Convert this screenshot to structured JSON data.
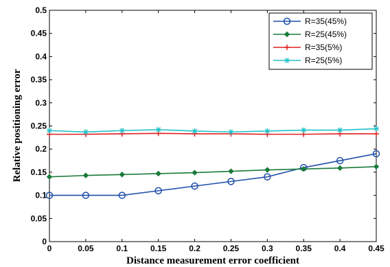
{
  "chart_data": {
    "type": "line",
    "title": "",
    "xlabel": "Distance measurement error coefficient",
    "ylabel": "Relative positioning error",
    "xlim": [
      0,
      0.45
    ],
    "ylim": [
      0,
      0.5
    ],
    "xticks": [
      "0",
      "0.05",
      "0.1",
      "0.15",
      "0.2",
      "0.25",
      "0.3",
      "0.35",
      "0.4",
      "0.45"
    ],
    "yticks": [
      "0",
      "0.05",
      "0.1",
      "0.15",
      "0.2",
      "0.25",
      "0.3",
      "0.35",
      "0.4",
      "0.45",
      "0.5"
    ],
    "grid": false,
    "legend_position": "top-right",
    "x": [
      0,
      0.05,
      0.1,
      0.15,
      0.2,
      0.25,
      0.3,
      0.35,
      0.4,
      0.45
    ],
    "series": [
      {
        "name": "R=35(45%)",
        "color": "#1f4fa8",
        "marker": "circle",
        "values": [
          0.1,
          0.1,
          0.1,
          0.11,
          0.12,
          0.13,
          0.14,
          0.16,
          0.175,
          0.19
        ]
      },
      {
        "name": "R=25(45%)",
        "color": "#1a7a3a",
        "marker": "diamond",
        "values": [
          0.14,
          0.143,
          0.145,
          0.147,
          0.149,
          0.152,
          0.155,
          0.157,
          0.159,
          0.162
        ]
      },
      {
        "name": "R=35(5%)",
        "color": "#e02020",
        "marker": "plus",
        "values": [
          0.232,
          0.232,
          0.233,
          0.234,
          0.233,
          0.233,
          0.232,
          0.232,
          0.233,
          0.233
        ]
      },
      {
        "name": "R=25(5%)",
        "color": "#20c0c8",
        "marker": "star",
        "values": [
          0.24,
          0.237,
          0.24,
          0.242,
          0.239,
          0.237,
          0.239,
          0.241,
          0.241,
          0.244
        ]
      }
    ]
  }
}
